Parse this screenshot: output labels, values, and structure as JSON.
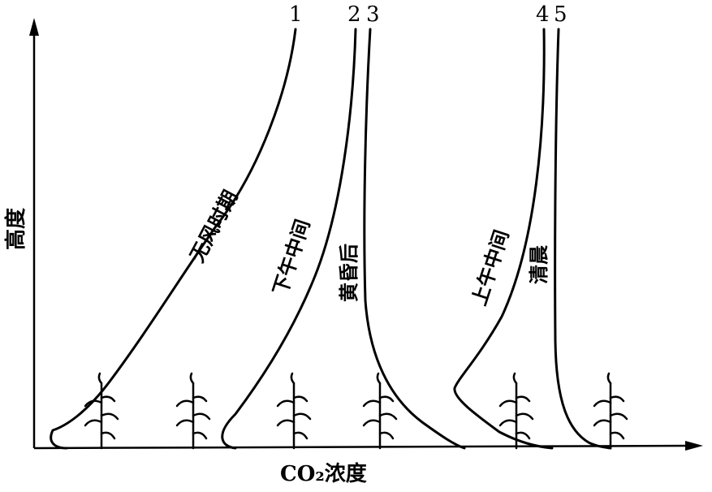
{
  "chart_data": {
    "type": "line",
    "title": "",
    "xlabel": "CO₂浓度",
    "ylabel": "高度",
    "grid": false,
    "legend": "none",
    "series": [
      {
        "number": "1",
        "label": "无风时期"
      },
      {
        "number": "2",
        "label": "下午中间"
      },
      {
        "number": "3",
        "label": "黄昏后"
      },
      {
        "number": "4",
        "label": "上午中间"
      },
      {
        "number": "5",
        "label": "清晨"
      }
    ]
  }
}
